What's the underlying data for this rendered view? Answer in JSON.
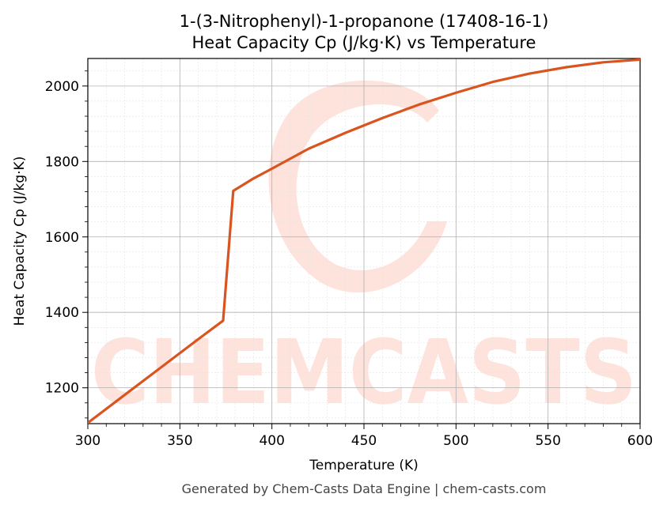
{
  "colors": {
    "line": "#d9541e",
    "watermark": "#fde3dc",
    "grid_major": "#b0b0b0",
    "grid_minor": "#e4e4e4",
    "footer": "#444444"
  },
  "watermark": {
    "text": "CHEMCASTS"
  },
  "footer": "Generated by Chem-Casts Data Engine | chem-casts.com",
  "chart_data": {
    "type": "line",
    "title": "1-(3-Nitrophenyl)-1-propanone (17408-16-1)",
    "subtitle": "Heat Capacity Cp (J/kg·K) vs Temperature",
    "xlabel": "Temperature (K)",
    "ylabel": "Heat Capacity Cp (J/kg·K)",
    "xlim": [
      300,
      600
    ],
    "ylim": [
      1105,
      2073
    ],
    "xticks": [
      300,
      350,
      400,
      450,
      500,
      550,
      600
    ],
    "yticks": [
      1200,
      1400,
      1600,
      1800,
      2000
    ],
    "grid": true,
    "legend": "none",
    "series": [
      {
        "x": [
          300,
          320,
          340,
          360,
          373.5,
          379,
          390,
          400,
          420,
          440,
          460,
          480,
          500,
          520,
          540,
          560,
          580,
          600
        ],
        "y": [
          1107,
          1181,
          1255,
          1329,
          1378,
          1722,
          1755,
          1781,
          1834,
          1876,
          1915,
          1951,
          1982,
          2011,
          2033,
          2050,
          2063,
          2070
        ]
      }
    ]
  }
}
